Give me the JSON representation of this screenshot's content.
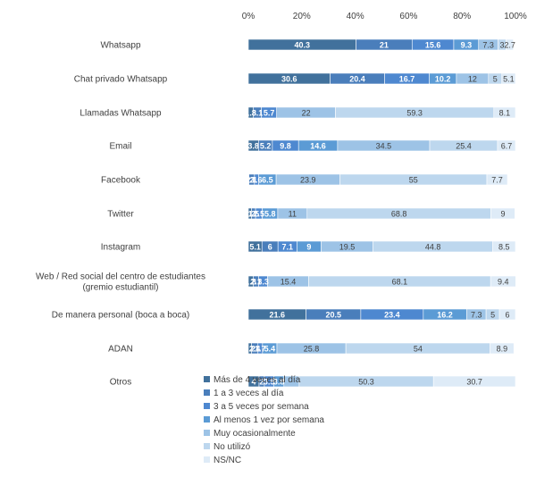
{
  "chart_data": {
    "type": "bar",
    "orientation": "horizontal",
    "stacked": "percent",
    "xlim": [
      0,
      100
    ],
    "x_ticks": [
      "0%",
      "20%",
      "40%",
      "60%",
      "80%",
      "100%"
    ],
    "axis_position": "top",
    "grid": false,
    "legend_position": "bottom-center",
    "categories": [
      "Whatsapp",
      "Chat privado Whatsapp",
      "Llamadas Whatsapp",
      "Email",
      "Facebook",
      "Twitter",
      "Instagram",
      "Web / Red social del centro de estudiantes (gremio estudiantil)",
      "De manera personal (boca a boca)",
      "ADAN",
      "Otros"
    ],
    "series": [
      {
        "name": "Más de 4 veces al día",
        "color": "#41719c",
        "values": [
          40.3,
          30.6,
          1.8,
          3.8,
          0.2,
          1.2,
          5.1,
          1.8,
          21.6,
          1.2,
          4
        ]
      },
      {
        "name": "1 a 3 veces al día",
        "color": "#4a7ebb",
        "values": [
          21,
          20.4,
          3.1,
          5.2,
          2.1,
          1.5,
          6,
          2.1,
          20.5,
          2.4,
          2
        ]
      },
      {
        "name": "3 a 5 veces por semana",
        "color": "#4e88d0",
        "values": [
          15.6,
          16.7,
          5.7,
          9.8,
          1.6,
          2.5,
          7.1,
          3.3,
          23.4,
          1.7,
          3.5
        ]
      },
      {
        "name": "Al menos 1 vez por semana",
        "color": "#5b9bd5",
        "values": [
          9.3,
          10.2,
          0,
          14.6,
          6.5,
          5.8,
          9,
          0,
          16.2,
          5.4,
          3.8
        ]
      },
      {
        "name": "Muy ocasionalmente",
        "color": "#9dc3e6",
        "values": [
          7.3,
          12,
          22,
          34.5,
          23.9,
          11,
          19.5,
          15.4,
          7.3,
          25.8,
          5.7
        ]
      },
      {
        "name": "No utilizó",
        "color": "#bdd7ee",
        "values": [
          3,
          5,
          59.3,
          25.4,
          55,
          68.8,
          44.8,
          68.1,
          5,
          54,
          50.3
        ]
      },
      {
        "name": "NS/NC",
        "color": "#deebf7",
        "values": [
          2.7,
          5.1,
          8.1,
          6.7,
          7.7,
          9,
          8.5,
          9.4,
          6,
          8.9,
          30.7
        ]
      }
    ],
    "data_labels": [
      [
        "40.3",
        "21",
        "15.6",
        "9.3",
        "7.3",
        "3",
        "2.7"
      ],
      [
        "30.6",
        "20.4",
        "16.7",
        "10.2",
        "12",
        "5",
        "5.1"
      ],
      [
        "1.8",
        "3.1",
        "5.7",
        "",
        "22",
        "59.3",
        "8.1"
      ],
      [
        "3.8",
        "5.2",
        "9.8",
        "14.6",
        "34.5",
        "25.4",
        "6.7"
      ],
      [
        "0.2",
        "2.1",
        "1.6",
        "6.5",
        "23.9",
        "55",
        "7.7"
      ],
      [
        "1.2",
        "1.5",
        "2.5",
        "5.8",
        "11",
        "68.8",
        "9"
      ],
      [
        "5.1",
        "6",
        "7.1",
        "9",
        "19.5",
        "44.8",
        "8.5"
      ],
      [
        "1.8",
        "2.1",
        "3.3",
        "",
        "15.4",
        "68.1",
        "9.4"
      ],
      [
        "21.6",
        "20.5",
        "23.4",
        "16.2",
        "7.3",
        "5",
        "6"
      ],
      [
        "1.2",
        "2.4",
        "1.7",
        "5.4",
        "25.8",
        "54",
        "8.9"
      ],
      [
        "4",
        "2",
        "3.5",
        "3.8",
        "",
        "50.3",
        "30.7"
      ]
    ],
    "title": "",
    "xlabel": "",
    "ylabel": ""
  }
}
